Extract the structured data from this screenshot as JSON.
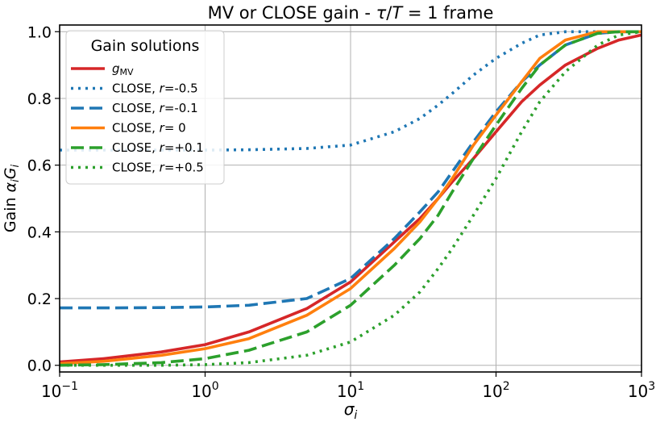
{
  "chart_data": {
    "type": "line",
    "title": "MV or CLOSE gain - τ/T = 1 frame",
    "xlabel": "σi",
    "ylabel": "Gain αiGi",
    "xscale": "log",
    "xlim": [
      0.1,
      1000
    ],
    "ylim": [
      -0.02,
      1.02
    ],
    "x_ticks": [
      0.1,
      1,
      10,
      100,
      1000
    ],
    "x_tick_labels": [
      "10−1",
      "100",
      "101",
      "102",
      "103"
    ],
    "y_ticks": [
      0.0,
      0.2,
      0.4,
      0.6,
      0.8,
      1.0
    ],
    "y_tick_labels": [
      "0.0",
      "0.2",
      "0.4",
      "0.6",
      "0.8",
      "1.0"
    ],
    "grid": true,
    "legend_title": "Gain solutions",
    "legend_position": "upper-left",
    "x": [
      0.1,
      0.2,
      0.5,
      1,
      2,
      5,
      10,
      20,
      30,
      40,
      50,
      70,
      100,
      150,
      200,
      300,
      500,
      700,
      1000
    ],
    "series": [
      {
        "name": "gMV",
        "color": "#d62728",
        "style": "solid",
        "values": [
          0.01,
          0.02,
          0.04,
          0.062,
          0.1,
          0.17,
          0.25,
          0.37,
          0.44,
          0.5,
          0.55,
          0.62,
          0.7,
          0.79,
          0.84,
          0.9,
          0.95,
          0.975,
          0.99
        ]
      },
      {
        "name": "CLOSE, r=-0.5",
        "color": "#1f77b4",
        "style": "dotted",
        "values": [
          0.645,
          0.645,
          0.645,
          0.645,
          0.646,
          0.65,
          0.66,
          0.7,
          0.74,
          0.78,
          0.815,
          0.87,
          0.92,
          0.965,
          0.99,
          1.0,
          1.0,
          1.0,
          1.0
        ]
      },
      {
        "name": "CLOSE, r=-0.1",
        "color": "#1f77b4",
        "style": "dashed",
        "values": [
          0.172,
          0.172,
          0.173,
          0.175,
          0.18,
          0.2,
          0.26,
          0.38,
          0.46,
          0.52,
          0.58,
          0.67,
          0.76,
          0.85,
          0.9,
          0.96,
          0.995,
          1.0,
          1.0
        ]
      },
      {
        "name": "CLOSE, r= 0",
        "color": "#ff7f0e",
        "style": "solid",
        "values": [
          0.005,
          0.012,
          0.03,
          0.05,
          0.08,
          0.15,
          0.23,
          0.35,
          0.43,
          0.5,
          0.56,
          0.66,
          0.75,
          0.85,
          0.92,
          0.975,
          1.0,
          1.0,
          1.0
        ]
      },
      {
        "name": "CLOSE, r=+0.1",
        "color": "#2ca02c",
        "style": "dashed",
        "values": [
          0.0,
          0.002,
          0.008,
          0.02,
          0.045,
          0.1,
          0.18,
          0.3,
          0.38,
          0.45,
          0.52,
          0.62,
          0.72,
          0.83,
          0.9,
          0.96,
          0.995,
          1.0,
          1.0
        ]
      },
      {
        "name": "CLOSE, r=+0.5",
        "color": "#2ca02c",
        "style": "dotted",
        "values": [
          0.0,
          0.0,
          0.0,
          0.002,
          0.008,
          0.03,
          0.07,
          0.15,
          0.22,
          0.29,
          0.35,
          0.45,
          0.56,
          0.7,
          0.79,
          0.88,
          0.96,
          0.99,
          1.0
        ]
      }
    ]
  }
}
